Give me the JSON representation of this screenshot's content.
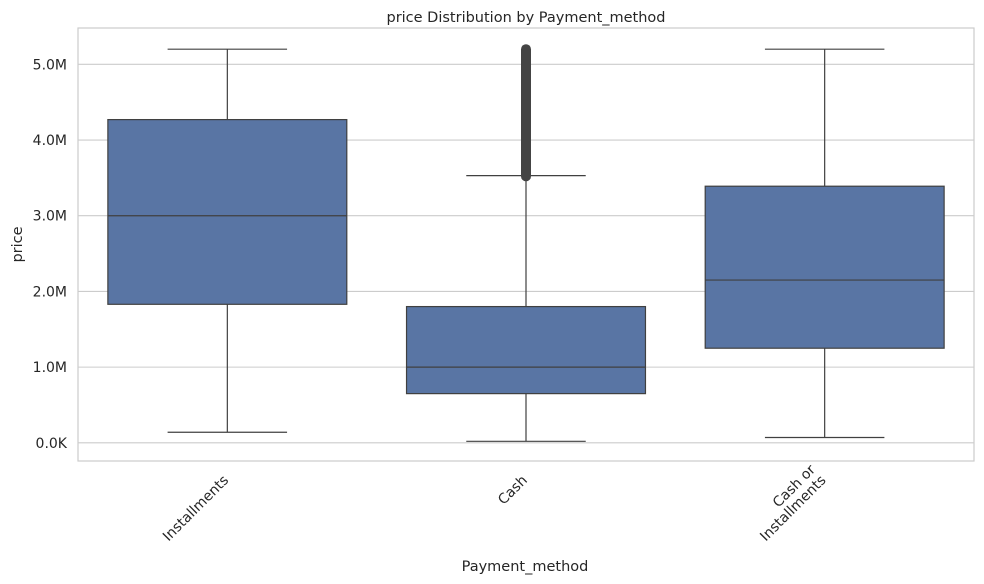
{
  "chart_data": {
    "type": "box",
    "title": "price Distribution by Payment_method",
    "xlabel": "Payment_method",
    "ylabel": "price",
    "ylim": [
      -240000,
      5480000
    ],
    "yticks": [
      0,
      1000000,
      2000000,
      3000000,
      4000000,
      5000000
    ],
    "ytick_labels": [
      "0.0K",
      "1.0M",
      "2.0M",
      "3.0M",
      "4.0M",
      "5.0M"
    ],
    "grid": true,
    "box_color": "#5975a4",
    "line_color": "#404040",
    "categories": [
      {
        "label": [
          "Installments"
        ],
        "whisker_low": 140000,
        "q1": 1830000,
        "median": 3000000,
        "q3": 4270000,
        "whisker_high": 5200000,
        "outliers_from": null,
        "outliers_to": null
      },
      {
        "label": [
          "Cash"
        ],
        "whisker_low": 20000,
        "q1": 650000,
        "median": 1000000,
        "q3": 1800000,
        "whisker_high": 3530000,
        "outliers_from": 3520000,
        "outliers_to": 5200000
      },
      {
        "label": [
          "Cash or",
          "Installments"
        ],
        "whisker_low": 70000,
        "q1": 1250000,
        "median": 2150000,
        "q3": 3390000,
        "whisker_high": 5200000,
        "outliers_from": null,
        "outliers_to": null
      }
    ]
  }
}
